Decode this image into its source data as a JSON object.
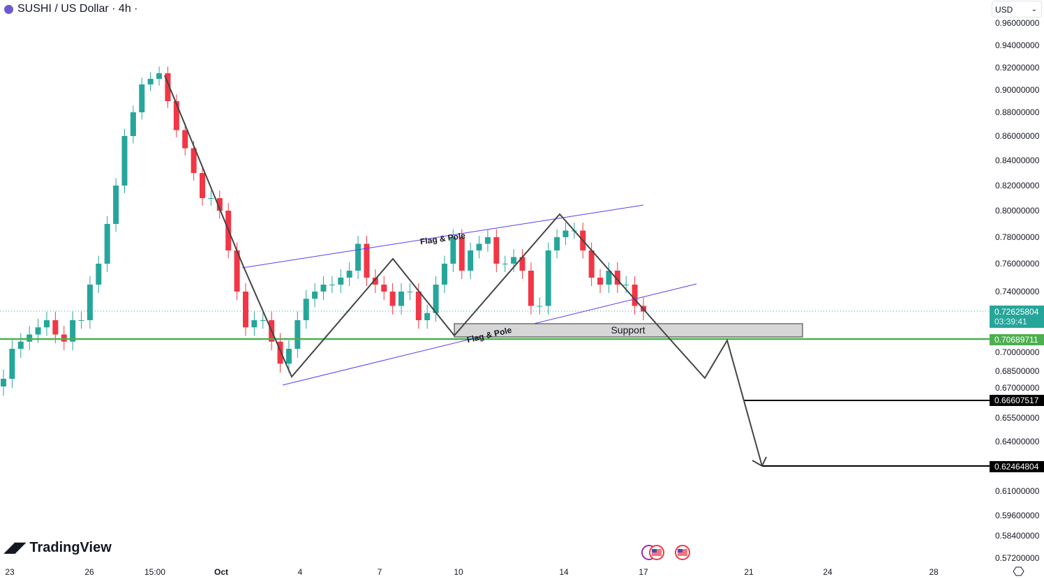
{
  "header": {
    "title": "SUSHI / US Dollar · 4h ·",
    "currency": "USD"
  },
  "brand": "TradingView",
  "chart_data": {
    "type": "candlestick",
    "title": "SUSHI / US Dollar · 4h",
    "y_ticks": [
      "0.96000000",
      "0.94000000",
      "0.92000000",
      "0.90000000",
      "0.88000000",
      "0.86000000",
      "0.84000000",
      "0.82000000",
      "0.80000000",
      "0.78000000",
      "0.76000000",
      "0.74000000",
      "0.70000000",
      "0.68500000",
      "0.67000000",
      "0.65500000",
      "0.64000000",
      "0.61000000",
      "0.59600000",
      "0.58400000",
      "0.57200000"
    ],
    "x_ticks": [
      "23",
      "26",
      "15:00",
      "Oct",
      "4",
      "7",
      "10",
      "14",
      "17",
      "21",
      "24",
      "28"
    ],
    "closes": [
      0.68,
      0.7,
      0.705,
      0.71,
      0.715,
      0.72,
      0.71,
      0.705,
      0.72,
      0.72,
      0.745,
      0.76,
      0.79,
      0.82,
      0.86,
      0.88,
      0.905,
      0.91,
      0.915,
      0.89,
      0.865,
      0.85,
      0.83,
      0.81,
      0.81,
      0.8,
      0.77,
      0.74,
      0.715,
      0.72,
      0.72,
      0.705,
      0.69,
      0.7,
      0.72,
      0.735,
      0.74,
      0.745,
      0.745,
      0.75,
      0.755,
      0.775,
      0.75,
      0.745,
      0.74,
      0.73,
      0.74,
      0.74,
      0.72,
      0.725,
      0.745,
      0.76,
      0.78,
      0.755,
      0.77,
      0.775,
      0.78,
      0.76,
      0.76,
      0.765,
      0.755,
      0.73,
      0.73,
      0.77,
      0.78,
      0.785,
      0.785,
      0.77,
      0.75,
      0.745,
      0.755,
      0.745,
      0.745,
      0.73,
      0.726
    ],
    "current_price": "0.72625804",
    "countdown": "03:39:41",
    "levels": [
      {
        "price": "0.70689711",
        "color": "#4caf50"
      },
      {
        "price": "0.66607517",
        "color": "#000000"
      },
      {
        "price": "0.62464804",
        "color": "#000000"
      }
    ],
    "annotations": {
      "flag_top": "Flag & Pole",
      "flag_bottom": "Flag & Pole",
      "support": "Support"
    },
    "colors": {
      "up": "#26a69a",
      "down": "#f23645",
      "channel": "#5b3cf0",
      "current": "#26a69a"
    }
  }
}
